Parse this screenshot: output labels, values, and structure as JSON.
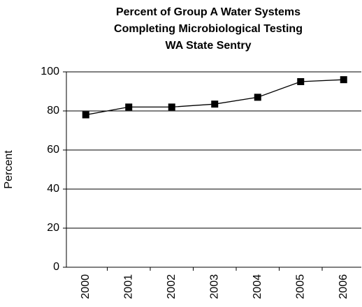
{
  "chart_data": {
    "type": "line",
    "title": [
      "Percent of Group A Water Systems",
      "Completing Microbiological Testing",
      "WA State Sentry"
    ],
    "y_label": "Percent",
    "categories": [
      "2000",
      "2001",
      "2002",
      "2003",
      "2004",
      "2005",
      "2006"
    ],
    "series": [
      {
        "name": "Percent",
        "color": "#000000",
        "values": [
          78,
          82,
          82,
          83.5,
          87,
          95,
          96
        ]
      }
    ],
    "ylim": [
      0,
      100
    ],
    "yticks": [
      0,
      20,
      40,
      60,
      80,
      100
    ],
    "grid": true
  }
}
